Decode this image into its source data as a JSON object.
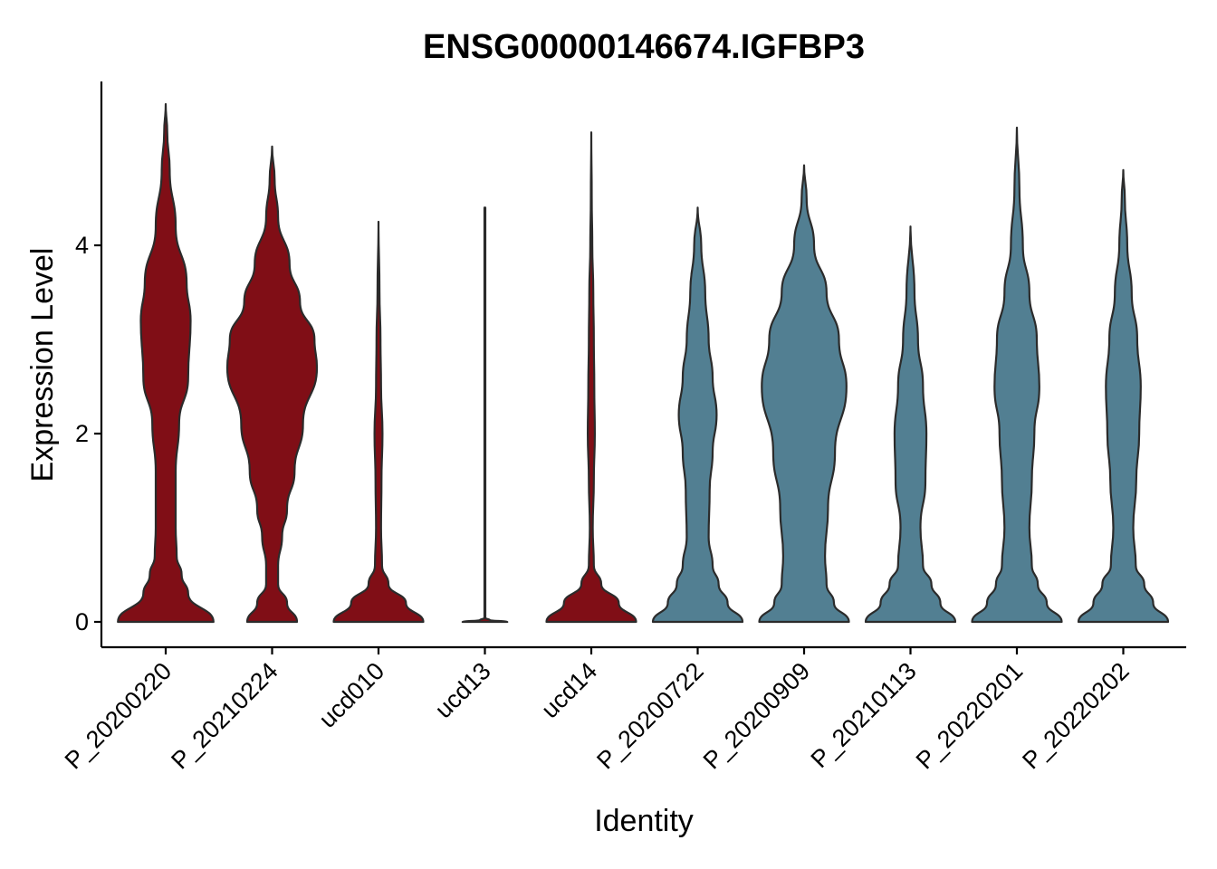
{
  "chart_data": {
    "type": "violin",
    "title": "ENSG00000146674.IGFBP3",
    "xlabel": "Identity",
    "ylabel": "Expression Level",
    "ylim": [
      -0.3,
      5.75
    ],
    "yticks": [
      0,
      2,
      4
    ],
    "grid": false,
    "legend": "none",
    "categories": [
      "P_20200220",
      "P_20210224",
      "ucd010",
      "ucd13",
      "ucd14",
      "P_20200722",
      "P_20200909",
      "P_20210113",
      "P_20220201",
      "P_20220202"
    ],
    "colors": {
      "group_a": "#800E16",
      "group_b": "#527F92"
    },
    "violins": [
      {
        "category": "P_20200220",
        "color": "#800E16",
        "max": 5.5,
        "profile": [
          [
            0,
            0.96
          ],
          [
            0.3,
            0.45
          ],
          [
            0.5,
            0.32
          ],
          [
            0.7,
            0.22
          ],
          [
            1.0,
            0.2
          ],
          [
            1.6,
            0.2
          ],
          [
            2.1,
            0.27
          ],
          [
            2.6,
            0.45
          ],
          [
            3.2,
            0.5
          ],
          [
            3.6,
            0.42
          ],
          [
            4.2,
            0.2
          ],
          [
            4.8,
            0.08
          ],
          [
            5.2,
            0.03
          ],
          [
            5.5,
            0
          ]
        ]
      },
      {
        "category": "P_20210224",
        "color": "#800E16",
        "max": 5.05,
        "profile": [
          [
            0,
            0.5
          ],
          [
            0.2,
            0.3
          ],
          [
            0.4,
            0.12
          ],
          [
            0.6,
            0.12
          ],
          [
            0.9,
            0.2
          ],
          [
            1.2,
            0.3
          ],
          [
            1.6,
            0.45
          ],
          [
            2.1,
            0.62
          ],
          [
            2.7,
            0.9
          ],
          [
            3.0,
            0.85
          ],
          [
            3.4,
            0.56
          ],
          [
            3.8,
            0.35
          ],
          [
            4.3,
            0.12
          ],
          [
            4.7,
            0.05
          ],
          [
            5.05,
            0
          ]
        ]
      },
      {
        "category": "ucd010",
        "color": "#800E16",
        "max": 4.25,
        "profile": [
          [
            0,
            0.9
          ],
          [
            0.2,
            0.55
          ],
          [
            0.4,
            0.2
          ],
          [
            0.6,
            0.07
          ],
          [
            1.0,
            0.05
          ],
          [
            1.5,
            0.06
          ],
          [
            2.0,
            0.08
          ],
          [
            2.5,
            0.05
          ],
          [
            3.0,
            0.04
          ],
          [
            3.5,
            0.02
          ],
          [
            4.25,
            0
          ]
        ]
      },
      {
        "category": "ucd13",
        "color": "#800E16",
        "max": 4.4,
        "profile": [
          [
            0,
            0.45
          ],
          [
            0.02,
            0.1
          ],
          [
            0.04,
            0.01
          ],
          [
            4.4,
            0.01
          ]
        ]
      },
      {
        "category": "ucd14",
        "color": "#800E16",
        "max": 5.2,
        "profile": [
          [
            0,
            0.9
          ],
          [
            0.2,
            0.55
          ],
          [
            0.4,
            0.2
          ],
          [
            0.6,
            0.05
          ],
          [
            1.0,
            0.03
          ],
          [
            1.5,
            0.05
          ],
          [
            2.0,
            0.07
          ],
          [
            2.5,
            0.06
          ],
          [
            3.0,
            0.05
          ],
          [
            3.5,
            0.04
          ],
          [
            4.0,
            0.02
          ],
          [
            4.5,
            0.01
          ],
          [
            5.2,
            0
          ]
        ]
      },
      {
        "category": "P_20200722",
        "color": "#527F92",
        "max": 4.4,
        "profile": [
          [
            0,
            0.9
          ],
          [
            0.2,
            0.6
          ],
          [
            0.4,
            0.42
          ],
          [
            0.6,
            0.3
          ],
          [
            0.9,
            0.22
          ],
          [
            1.4,
            0.24
          ],
          [
            1.8,
            0.3
          ],
          [
            2.2,
            0.38
          ],
          [
            2.6,
            0.3
          ],
          [
            3.0,
            0.22
          ],
          [
            3.5,
            0.15
          ],
          [
            4.0,
            0.07
          ],
          [
            4.4,
            0
          ]
        ]
      },
      {
        "category": "P_20200909",
        "color": "#527F92",
        "max": 4.85,
        "profile": [
          [
            0,
            0.9
          ],
          [
            0.2,
            0.6
          ],
          [
            0.4,
            0.45
          ],
          [
            0.7,
            0.42
          ],
          [
            1.2,
            0.48
          ],
          [
            1.8,
            0.62
          ],
          [
            2.5,
            0.85
          ],
          [
            3.0,
            0.7
          ],
          [
            3.5,
            0.45
          ],
          [
            4.0,
            0.2
          ],
          [
            4.5,
            0.05
          ],
          [
            4.85,
            0
          ]
        ]
      },
      {
        "category": "P_20210113",
        "color": "#527F92",
        "max": 4.2,
        "profile": [
          [
            0,
            0.9
          ],
          [
            0.2,
            0.6
          ],
          [
            0.4,
            0.42
          ],
          [
            0.6,
            0.25
          ],
          [
            1.0,
            0.2
          ],
          [
            1.5,
            0.3
          ],
          [
            2.0,
            0.32
          ],
          [
            2.5,
            0.25
          ],
          [
            3.0,
            0.15
          ],
          [
            3.5,
            0.08
          ],
          [
            4.2,
            0
          ]
        ]
      },
      {
        "category": "P_20220201",
        "color": "#527F92",
        "max": 5.25,
        "profile": [
          [
            0,
            0.9
          ],
          [
            0.2,
            0.6
          ],
          [
            0.4,
            0.42
          ],
          [
            0.6,
            0.3
          ],
          [
            1.0,
            0.25
          ],
          [
            1.5,
            0.3
          ],
          [
            2.0,
            0.35
          ],
          [
            2.5,
            0.45
          ],
          [
            3.0,
            0.4
          ],
          [
            3.5,
            0.25
          ],
          [
            4.0,
            0.12
          ],
          [
            4.6,
            0.05
          ],
          [
            5.25,
            0
          ]
        ]
      },
      {
        "category": "P_20220202",
        "color": "#527F92",
        "max": 4.8,
        "profile": [
          [
            0,
            0.9
          ],
          [
            0.2,
            0.6
          ],
          [
            0.4,
            0.42
          ],
          [
            0.6,
            0.25
          ],
          [
            1.0,
            0.2
          ],
          [
            1.5,
            0.26
          ],
          [
            2.0,
            0.32
          ],
          [
            2.5,
            0.35
          ],
          [
            3.0,
            0.28
          ],
          [
            3.5,
            0.17
          ],
          [
            4.0,
            0.08
          ],
          [
            4.5,
            0.03
          ],
          [
            4.8,
            0
          ]
        ]
      }
    ]
  }
}
